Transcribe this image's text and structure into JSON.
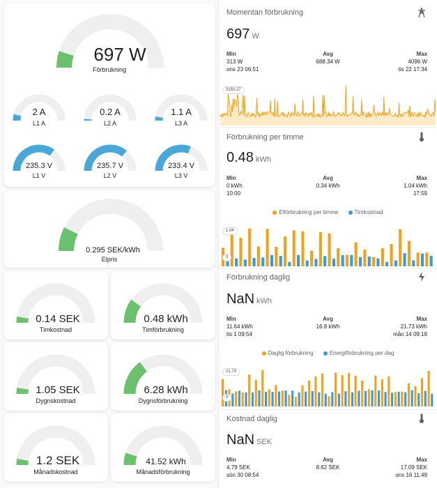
{
  "gauges": {
    "main": {
      "value": "697 W",
      "label": "Förbrukning",
      "fraction": 0.1
    },
    "l1a": {
      "value": "2 A",
      "label": "L1 A",
      "fraction": 0.08
    },
    "l2a": {
      "value": "0.2 A",
      "label": "L2 A",
      "fraction": 0.02
    },
    "l3a": {
      "value": "1.1 A",
      "label": "L3 A",
      "fraction": 0.05
    },
    "l1v": {
      "value": "235.3 V",
      "label": "L1 V",
      "fraction": 0.7
    },
    "l2v": {
      "value": "235.7 V",
      "label": "L2 V",
      "fraction": 0.72
    },
    "l3v": {
      "value": "233.4 V",
      "label": "L3 V",
      "fraction": 0.62
    },
    "elpris": {
      "value": "0.295 SEK/kWh",
      "label": "Elpris",
      "fraction": 0.15
    },
    "timkostnad": {
      "value": "0.14 SEK",
      "label": "Timkostnad",
      "fraction": 0.05
    },
    "timforbrukning": {
      "value": "0.48 kWh",
      "label": "Timförbrukning",
      "fraction": 0.2
    },
    "dygnskostnad": {
      "value": "1.05 SEK",
      "label": "Dygnskostnad",
      "fraction": 0.05
    },
    "dygnsforbrukning": {
      "value": "6.28 kWh",
      "label": "Dygnsförbrukning",
      "fraction": 0.3
    },
    "manadskostnad": {
      "value": "1.2 SEK",
      "label": "Månadskostnad",
      "fraction": 0.05
    },
    "manadsforbrukning": {
      "value": "41.52 kWh",
      "label": "Månadsförbrukning",
      "fraction": 0.1
    }
  },
  "stats": {
    "momentan": {
      "title": "Momentan förbrukning",
      "icon": "transmission-tower-icon",
      "value": "697",
      "unit": "W",
      "min_label": "Min",
      "min_value": "313 W",
      "min_time": "ons 23 06:51",
      "avg_label": "Avg",
      "avg_value": "688.34 W",
      "max_label": "Max",
      "max_value": "4096 W",
      "max_time": "tis 22 17:34",
      "peak_label": "3150.27"
    },
    "timme": {
      "title": "Förbrukning per timme",
      "icon": "thermometer-icon",
      "value": "0.48",
      "unit": "kWh",
      "min_label": "Min",
      "min_value": "0 kWh",
      "min_time": "10:00",
      "avg_label": "Avg",
      "avg_value": "0.34 kWh",
      "max_label": "Max",
      "max_value": "1.04 kWh",
      "max_time": "17:59",
      "legend_a": "Elförbrukning per timme",
      "legend_b": "Timkostnad",
      "peak_label": "1.04",
      "zero_label": "0"
    },
    "daglig": {
      "title": "Förbrukning daglig",
      "icon": "flash-icon",
      "value": "NaN",
      "unit": "kWh",
      "min_label": "Min",
      "min_value": "11.64 kWh",
      "min_time": "tis 1 09:54",
      "avg_label": "Avg",
      "avg_value": "16.8 kWh",
      "max_label": "Max",
      "max_value": "21.73 kWh",
      "max_time": "mån 14 09:18",
      "legend_a": "Daglig förbrukning",
      "legend_b": "Energiförbrukning per dag",
      "peak_label": "21.73",
      "zero_label": "0"
    },
    "kostnad": {
      "title": "Kostnad daglig",
      "icon": "thermometer-icon",
      "value": "NaN",
      "unit": "SEK",
      "min_label": "Min",
      "min_value": "4.79 SEK",
      "min_time": "sön 30 08:54",
      "avg_label": "Avg",
      "avg_value": "8.62 SEK",
      "max_label": "Max",
      "max_value": "17.09 SEK",
      "max_time": "ons 16 11:49"
    }
  },
  "colors": {
    "gauge_green": "#6cc16f",
    "gauge_blue": "#4aa8d8",
    "gauge_track": "#efefef",
    "orange": "#f3a11b",
    "blue": "#3b9ad9"
  }
}
